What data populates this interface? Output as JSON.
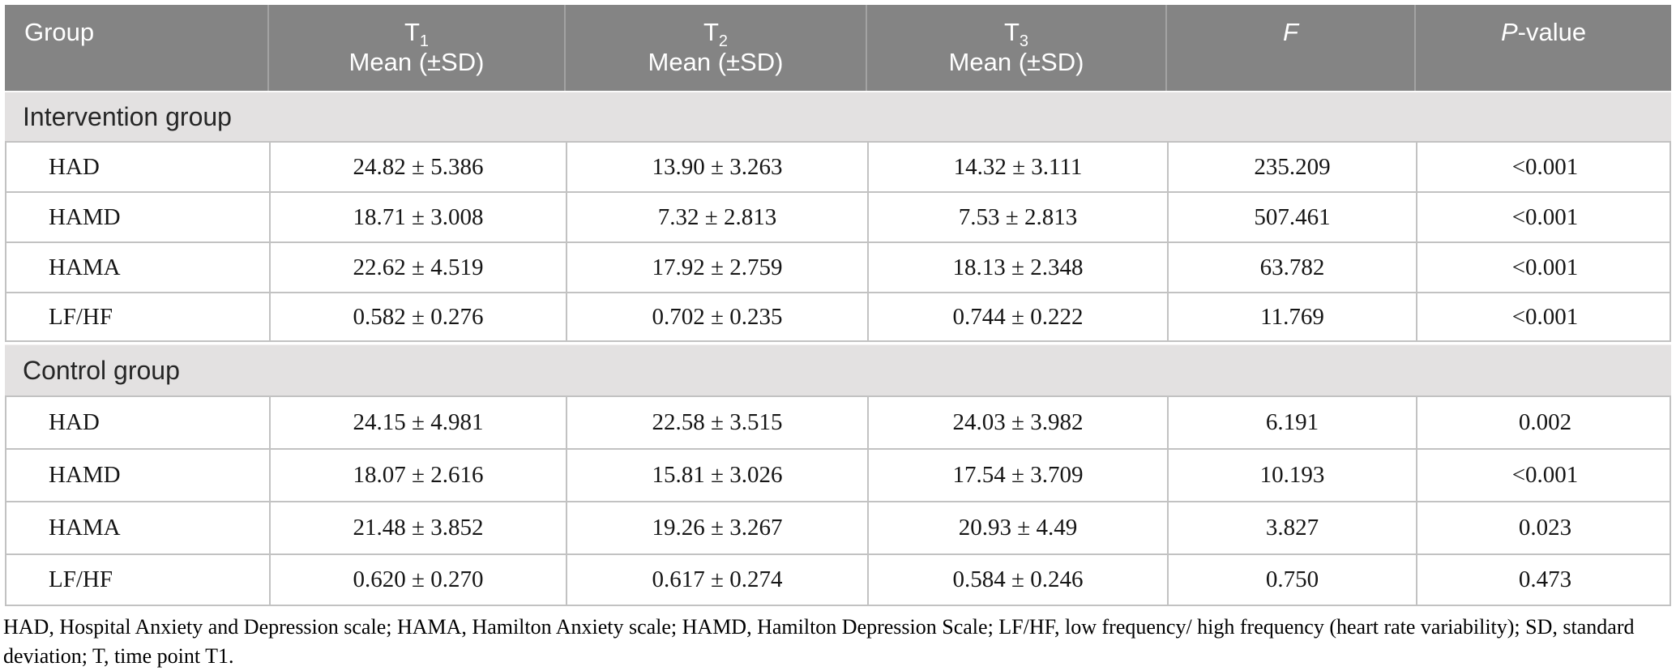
{
  "colors": {
    "header_bg": "#848484",
    "header_divider": "#a3a3a3",
    "section_band_bg": "#e3e1e1",
    "grid_border": "#c2c2c2",
    "header_text": "#ffffff",
    "body_text": "#151515"
  },
  "table": {
    "header": {
      "group": "Group",
      "t_cols": [
        {
          "base": "T",
          "sub": "1",
          "line2": "Mean (±SD)"
        },
        {
          "base": "T",
          "sub": "2",
          "line2": "Mean (±SD)"
        },
        {
          "base": "T",
          "sub": "3",
          "line2": "Mean (±SD)"
        }
      ],
      "f_label": "F",
      "p_italic": "P",
      "p_rest": "-value"
    },
    "sections": [
      {
        "label": "Intervention group",
        "rows": [
          {
            "cells": [
              "HAD",
              "24.82 ± 5.386",
              "13.90 ± 3.263",
              "14.32 ± 3.111",
              "235.209",
              "<0.001"
            ]
          },
          {
            "cells": [
              "HAMD",
              "18.71 ± 3.008",
              "7.32 ± 2.813",
              "7.53 ± 2.813",
              "507.461",
              "<0.001"
            ]
          },
          {
            "cells": [
              "HAMA",
              "22.62 ± 4.519",
              "17.92 ± 2.759",
              "18.13 ± 2.348",
              "63.782",
              "<0.001"
            ]
          },
          {
            "cells": [
              "LF/HF",
              "0.582 ± 0.276",
              "0.702 ± 0.235",
              "0.744 ± 0.222",
              "11.769",
              "<0.001"
            ]
          }
        ]
      },
      {
        "label": "Control group",
        "rows": [
          {
            "cells": [
              "HAD",
              "24.15 ± 4.981",
              "22.58 ± 3.515",
              "24.03 ± 3.982",
              "6.191",
              "0.002"
            ]
          },
          {
            "cells": [
              "HAMD",
              "18.07 ± 2.616",
              "15.81 ± 3.026",
              "17.54 ± 3.709",
              "10.193",
              "<0.001"
            ]
          },
          {
            "cells": [
              "HAMA",
              "21.48 ± 3.852",
              "19.26 ± 3.267",
              "20.93 ± 4.49",
              "3.827",
              "0.023"
            ]
          },
          {
            "cells": [
              "LF/HF",
              "0.620 ± 0.270",
              "0.617 ± 0.274",
              "0.584 ± 0.246",
              "0.750",
              "0.473"
            ]
          }
        ]
      }
    ]
  },
  "footnote": "HAD, Hospital Anxiety and Depression scale; HAMA, Hamilton Anxiety scale; HAMD, Hamilton Depression Scale; LF/HF, low frequency/ high frequency (heart rate variability); SD, standard deviation; T, time point T1."
}
